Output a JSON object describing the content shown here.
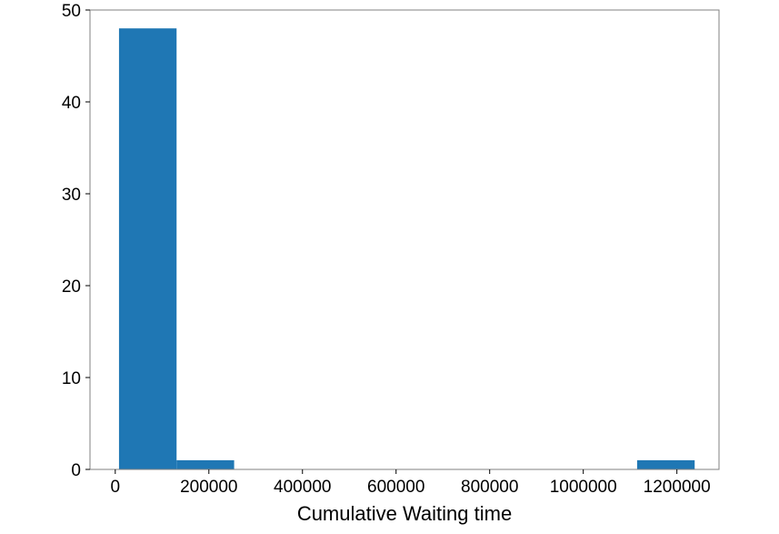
{
  "chart_data": {
    "type": "bar",
    "subtype": "histogram",
    "xlabel": "Cumulative Waiting time",
    "ylabel": "",
    "title": "",
    "xlim": [
      -54000,
      1290000
    ],
    "ylim": [
      0,
      50
    ],
    "xticks": [
      0,
      200000,
      400000,
      600000,
      800000,
      1000000,
      1200000
    ],
    "xtick_labels": [
      "0",
      "200000",
      "400000",
      "600000",
      "800000",
      "1000000",
      "1200000"
    ],
    "yticks": [
      0,
      10,
      20,
      30,
      40,
      50
    ],
    "ytick_labels": [
      "0",
      "10",
      "20",
      "30",
      "40",
      "50"
    ],
    "bin_edges": [
      8000,
      131000,
      254000,
      377000,
      500000,
      623000,
      746000,
      869000,
      992000,
      1115000,
      1238000
    ],
    "counts": [
      48,
      1,
      0,
      0,
      0,
      0,
      0,
      0,
      0,
      1
    ],
    "bar_color": "#1f77b4",
    "grid": false,
    "legend": "none"
  }
}
